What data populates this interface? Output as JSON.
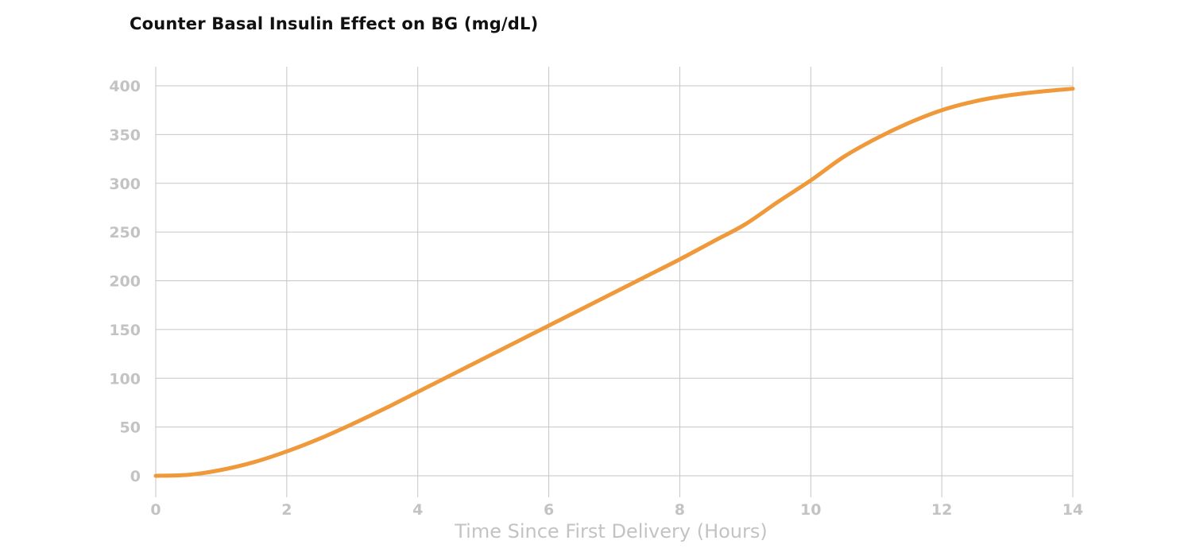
{
  "chart_data": {
    "type": "line",
    "title": "Counter Basal Insulin Effect on BG (mg/dL)",
    "xlabel": "Time Since First Delivery (Hours)",
    "ylabel": "",
    "xlim": [
      0,
      14
    ],
    "ylim": [
      0,
      400
    ],
    "x_ticks": [
      0,
      2,
      4,
      6,
      8,
      10,
      12,
      14
    ],
    "y_ticks": [
      0,
      50,
      100,
      150,
      200,
      250,
      300,
      350,
      400
    ],
    "grid": true,
    "legend": false,
    "series": [
      {
        "color": "#f0993a",
        "x": [
          0,
          0.5,
          1,
          1.5,
          2,
          2.5,
          3,
          3.5,
          4,
          4.5,
          5,
          5.5,
          6,
          6.5,
          7,
          7.5,
          8,
          8.5,
          9,
          9.5,
          10,
          10.5,
          11,
          11.5,
          12,
          12.5,
          13,
          13.5,
          14
        ],
        "y": [
          0,
          1,
          6,
          14,
          25,
          38,
          53,
          69,
          86,
          103,
          120,
          137,
          154,
          171,
          188,
          205,
          222,
          240,
          258,
          281,
          303,
          327,
          346,
          362,
          375,
          384,
          390,
          394,
          397
        ]
      }
    ]
  }
}
